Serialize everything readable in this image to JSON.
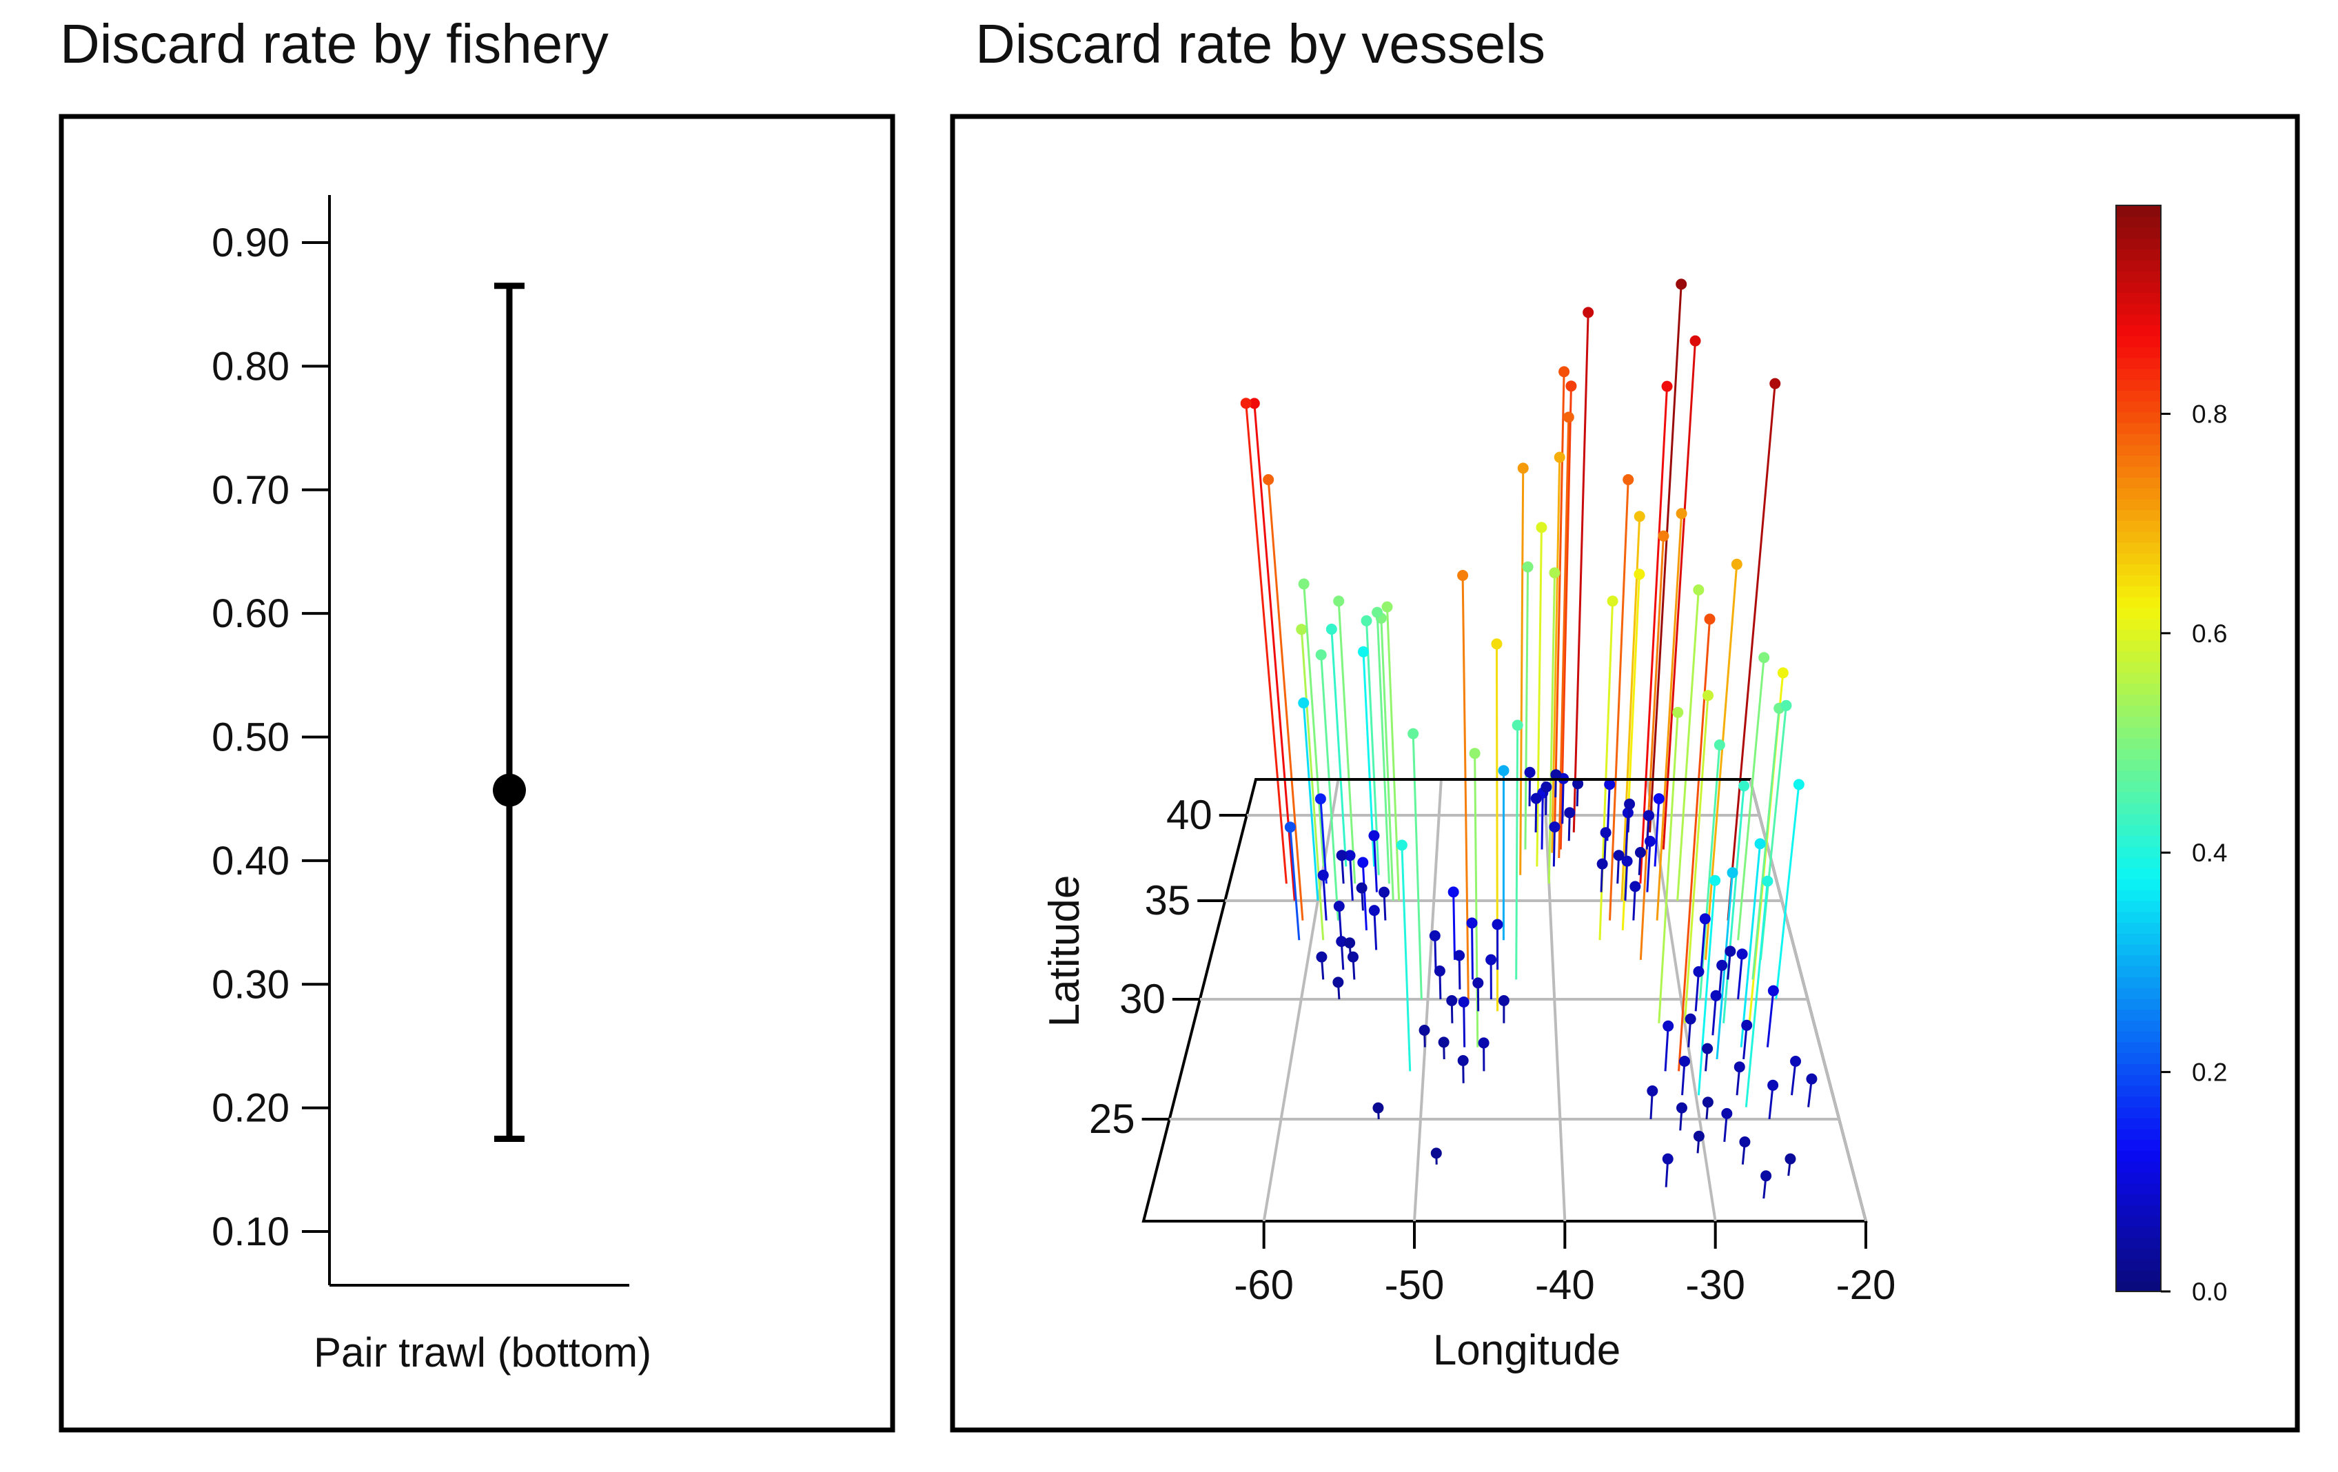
{
  "titles": {
    "left": "Discard rate by fishery",
    "right": "Discard rate by vessels"
  },
  "chart_data": [
    {
      "type": "errorbar",
      "title": "Discard rate by fishery",
      "categories": [
        "Pair trawl (bottom)"
      ],
      "values": [
        0.457
      ],
      "lower": [
        0.175
      ],
      "upper": [
        0.865
      ],
      "ylim": [
        0.08,
        0.94
      ],
      "yticks": [
        "0.10",
        "0.20",
        "0.30",
        "0.40",
        "0.50",
        "0.60",
        "0.70",
        "0.80",
        "0.90"
      ],
      "xlabel": "Pair trawl (bottom)"
    },
    {
      "type": "scatter3d",
      "title": "Discard rate by vessels",
      "xlabel": "Longitude",
      "ylabel": "Latitude",
      "xticks": [
        "-60",
        "-50",
        "-40",
        "-30",
        "-20"
      ],
      "yticks": [
        "25",
        "30",
        "35",
        "40"
      ],
      "xlim": [
        -68,
        -20
      ],
      "ylim": [
        20.5,
        42
      ],
      "colorbar": {
        "ticks": [
          "0.0",
          "0.2",
          "0.4",
          "0.6",
          "0.8"
        ],
        "range": [
          0,
          1
        ],
        "colormap": "jet"
      },
      "points": [
        [
          -58,
          36,
          0.05
        ],
        [
          -57,
          35,
          0.08
        ],
        [
          -56,
          34.5,
          0.04
        ],
        [
          -55,
          35.5,
          0.1
        ],
        [
          -57.5,
          33,
          0.06
        ],
        [
          -56.5,
          32,
          0.03
        ],
        [
          -55.5,
          33.5,
          0.12
        ],
        [
          -54,
          34,
          0.05
        ],
        [
          -58.5,
          31,
          0.04
        ],
        [
          -57,
          30,
          0.03
        ],
        [
          -59,
          34,
          0.08
        ],
        [
          -60,
          35,
          0.35
        ],
        [
          -61,
          33,
          0.2
        ],
        [
          -56,
          31,
          0.04
        ],
        [
          -55,
          36.5,
          0.45
        ],
        [
          -54.5,
          32.5,
          0.07
        ],
        [
          -53.5,
          35,
          0.5
        ],
        [
          -58,
          37,
          0.42
        ],
        [
          -59.5,
          36,
          0.15
        ],
        [
          -57,
          31.5,
          0.05
        ],
        [
          -63,
          36,
          0.85
        ],
        [
          -62,
          35,
          0.88
        ],
        [
          -61,
          34,
          0.78
        ],
        [
          -60,
          37,
          0.5
        ],
        [
          -59,
          33,
          0.55
        ],
        [
          -58,
          34,
          0.47
        ],
        [
          -57,
          36,
          0.5
        ],
        [
          -55.5,
          37,
          0.38
        ],
        [
          -54,
          36,
          0.48
        ],
        [
          -53,
          35,
          0.52
        ],
        [
          -49,
          30,
          0.05
        ],
        [
          -48,
          29,
          0.04
        ],
        [
          -47.5,
          30.5,
          0.06
        ],
        [
          -47,
          28,
          0.08
        ],
        [
          -46,
          29.5,
          0.05
        ],
        [
          -48.5,
          27.5,
          0.03
        ],
        [
          -45,
          30,
          0.07
        ],
        [
          -44,
          29,
          0.04
        ],
        [
          -46.5,
          31,
          0.1
        ],
        [
          -49.5,
          31.5,
          0.06
        ],
        [
          -45.5,
          27,
          0.05
        ],
        [
          -47,
          26.5,
          0.04
        ],
        [
          -50,
          28,
          0.03
        ],
        [
          -44.5,
          31.5,
          0.08
        ],
        [
          -48,
          32,
          0.12
        ],
        [
          -53,
          25,
          0.02
        ],
        [
          -48.7,
          23,
          0.02
        ],
        [
          -51,
          27,
          0.4
        ],
        [
          -50.5,
          30,
          0.47
        ],
        [
          -46,
          28,
          0.52
        ],
        [
          -44,
          33,
          0.3
        ],
        [
          -43,
          31,
          0.45
        ],
        [
          -46.8,
          30,
          0.75
        ],
        [
          -44.5,
          29.5,
          0.65
        ],
        [
          -40,
          40,
          0.05
        ],
        [
          -39,
          41,
          0.04
        ],
        [
          -38.5,
          39.5,
          0.08
        ],
        [
          -41,
          39,
          0.06
        ],
        [
          -40.5,
          38,
          0.1
        ],
        [
          -38,
          38.5,
          0.05
        ],
        [
          -37,
          40.5,
          0.04
        ],
        [
          -39.5,
          37,
          0.07
        ],
        [
          -41.5,
          40.5,
          0.06
        ],
        [
          -37.5,
          39,
          0.92
        ],
        [
          -39.2,
          39.5,
          0.8
        ],
        [
          -38.8,
          38,
          0.82
        ],
        [
          -39,
          37.5,
          0.78
        ],
        [
          -41,
          37,
          0.6
        ],
        [
          -40,
          36,
          0.55
        ],
        [
          -42,
          38,
          0.5
        ],
        [
          -42.5,
          36.5,
          0.72
        ],
        [
          -39.6,
          37.8,
          0.7
        ],
        [
          -35,
          37,
          0.06
        ],
        [
          -34,
          36,
          0.05
        ],
        [
          -33,
          37.5,
          0.08
        ],
        [
          -32,
          36.5,
          0.04
        ],
        [
          -31,
          38,
          0.06
        ],
        [
          -34.5,
          38.5,
          0.1
        ],
        [
          -33.5,
          35,
          0.07
        ],
        [
          -32.5,
          39,
          0.05
        ],
        [
          -31.5,
          35.5,
          0.09
        ],
        [
          -35.5,
          35.5,
          0.05
        ],
        [
          -30.5,
          37,
          0.12
        ],
        [
          -33,
          34,
          0.06
        ],
        [
          -36,
          33,
          0.6
        ],
        [
          -35,
          34,
          0.78
        ],
        [
          -33.8,
          35,
          0.68
        ],
        [
          -32,
          36,
          0.88
        ],
        [
          -30.5,
          39,
          0.97
        ],
        [
          -29.5,
          38,
          0.9
        ],
        [
          -31,
          34,
          0.72
        ],
        [
          -29,
          35,
          0.55
        ],
        [
          -34,
          33.5,
          0.63
        ],
        [
          -32.8,
          32,
          0.75
        ],
        [
          -30,
          28,
          0.05
        ],
        [
          -29,
          27,
          0.04
        ],
        [
          -28,
          28.5,
          0.07
        ],
        [
          -27,
          26,
          0.05
        ],
        [
          -26,
          27.5,
          0.06
        ],
        [
          -29.5,
          25,
          0.03
        ],
        [
          -28.5,
          24,
          0.05
        ],
        [
          -27.5,
          23,
          0.04
        ],
        [
          -31,
          26,
          0.06
        ],
        [
          -32,
          27,
          0.08
        ],
        [
          -30.5,
          23.5,
          0.03
        ],
        [
          -33,
          22,
          0.05
        ],
        [
          -26.5,
          21.5,
          0.04
        ],
        [
          -25,
          25,
          0.06
        ],
        [
          -24,
          28,
          0.1
        ],
        [
          -25.5,
          30,
          0.08
        ],
        [
          -26,
          31,
          0.05
        ],
        [
          -27,
          30,
          0.06
        ],
        [
          -28,
          31.5,
          0.09
        ],
        [
          -29,
          29.5,
          0.07
        ],
        [
          -31.5,
          24.5,
          0.04
        ],
        [
          -33.5,
          25,
          0.05
        ],
        [
          -24.5,
          22.5,
          0.03
        ],
        [
          -23,
          26,
          0.06
        ],
        [
          -22,
          25.5,
          0.05
        ],
        [
          -31,
          27,
          0.8
        ],
        [
          -30,
          29,
          0.58
        ],
        [
          -28.5,
          30,
          0.45
        ],
        [
          -27,
          29,
          0.42
        ],
        [
          -26,
          28,
          0.36
        ],
        [
          -25,
          29,
          0.62
        ],
        [
          -24,
          31,
          0.48
        ],
        [
          -23,
          32,
          0.45
        ],
        [
          -24.5,
          33,
          0.5
        ],
        [
          -22.5,
          30,
          0.38
        ],
        [
          -25,
          34,
          0.95
        ],
        [
          -27.5,
          32,
          0.7
        ],
        [
          -32,
          29,
          0.55
        ],
        [
          -29.8,
          26,
          0.38
        ],
        [
          -28,
          27.5,
          0.33
        ],
        [
          -26.5,
          25.5,
          0.4
        ]
      ]
    }
  ]
}
